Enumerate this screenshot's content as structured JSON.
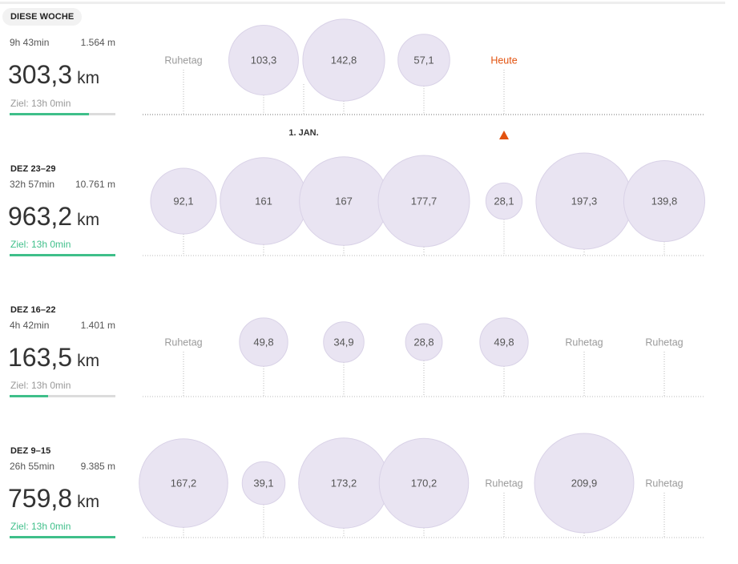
{
  "header": {
    "month_marker": "1. JAN."
  },
  "colors": {
    "bubble": "#e9e4f2",
    "bubble_stroke": "#d9d2e7",
    "goal_green": "#3fbf8a",
    "today_orange": "#e2520e",
    "text": "#333333"
  },
  "weeks": [
    {
      "label": "DIESE WOCHE",
      "duration": "9h 43min",
      "elevation": "1.564 m",
      "distance": "303,3",
      "unit": "km",
      "goal": "Ziel: 13h 0min",
      "goal_progress": 0.75,
      "goal_reached": false,
      "current": true,
      "today_index": 4,
      "chart_data": {
        "type": "bubble",
        "unit": "km",
        "days": [
          {
            "label": "Ruhetag",
            "value": null
          },
          {
            "label": "103,3",
            "value": 103.3
          },
          {
            "label": "142,8",
            "value": 142.8
          },
          {
            "label": "57,1",
            "value": 57.1
          },
          {
            "label": "Heute",
            "value": null
          },
          {
            "label": "",
            "value": null
          },
          {
            "label": "",
            "value": null
          }
        ]
      }
    },
    {
      "label": "DEZ 23–29",
      "duration": "32h 57min",
      "elevation": "10.761 m",
      "distance": "963,2",
      "unit": "km",
      "goal": "Ziel: 13h 0min",
      "goal_progress": 1.0,
      "goal_reached": true,
      "current": false,
      "chart_data": {
        "type": "bubble",
        "unit": "km",
        "days": [
          {
            "label": "92,1",
            "value": 92.1
          },
          {
            "label": "161",
            "value": 161
          },
          {
            "label": "167",
            "value": 167
          },
          {
            "label": "177,7",
            "value": 177.7
          },
          {
            "label": "28,1",
            "value": 28.1
          },
          {
            "label": "197,3",
            "value": 197.3
          },
          {
            "label": "139,8",
            "value": 139.8
          }
        ]
      }
    },
    {
      "label": "DEZ 16–22",
      "duration": "4h 42min",
      "elevation": "1.401 m",
      "distance": "163,5",
      "unit": "km",
      "goal": "Ziel: 13h 0min",
      "goal_progress": 0.36,
      "goal_reached": false,
      "current": false,
      "chart_data": {
        "type": "bubble",
        "unit": "km",
        "days": [
          {
            "label": "Ruhetag",
            "value": null
          },
          {
            "label": "49,8",
            "value": 49.8
          },
          {
            "label": "34,9",
            "value": 34.9
          },
          {
            "label": "28,8",
            "value": 28.8
          },
          {
            "label": "49,8",
            "value": 49.8
          },
          {
            "label": "Ruhetag",
            "value": null
          },
          {
            "label": "Ruhetag",
            "value": null
          }
        ]
      }
    },
    {
      "label": "DEZ 9–15",
      "duration": "26h 55min",
      "elevation": "9.385 m",
      "distance": "759,8",
      "unit": "km",
      "goal": "Ziel: 13h 0min",
      "goal_progress": 1.0,
      "goal_reached": true,
      "current": false,
      "chart_data": {
        "type": "bubble",
        "unit": "km",
        "days": [
          {
            "label": "167,2",
            "value": 167.2
          },
          {
            "label": "39,1",
            "value": 39.1
          },
          {
            "label": "173,2",
            "value": 173.2
          },
          {
            "label": "170,2",
            "value": 170.2
          },
          {
            "label": "Ruhetag",
            "value": null
          },
          {
            "label": "209,9",
            "value": 209.9
          },
          {
            "label": "Ruhetag",
            "value": null
          }
        ]
      }
    }
  ]
}
